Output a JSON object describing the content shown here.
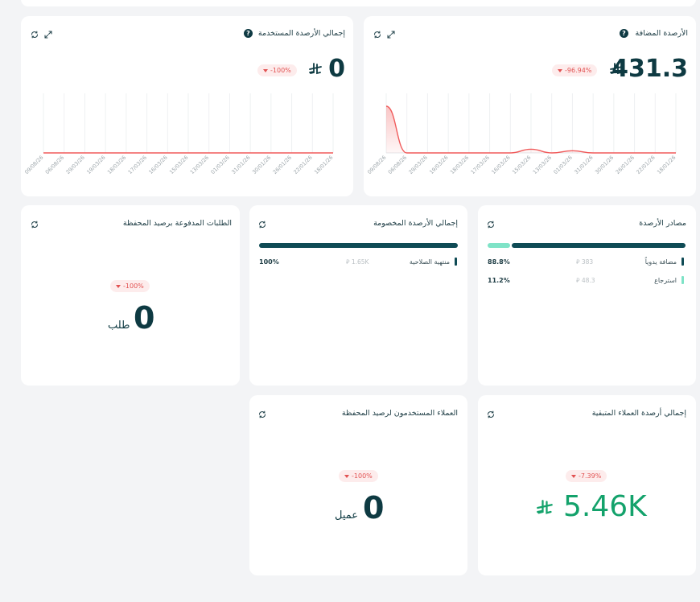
{
  "cards": {
    "added_balances": {
      "title": "الأرصدة المضافة",
      "value": "431.3",
      "badge": "-96.94%",
      "ticks": [
        "09/08/26",
        "06/08/26",
        "29/03/26",
        "19/03/26",
        "18/03/26",
        "17/03/26",
        "16/03/26",
        "15/03/26",
        "13/03/26",
        "01/03/26",
        "31/01/26",
        "30/01/26",
        "26/01/26",
        "22/01/26",
        "18/01/26"
      ]
    },
    "used_balances": {
      "title": "إجمالي الأرصدة المستخدمة",
      "value": "0",
      "badge": "-100%",
      "ticks": [
        "09/08/26",
        "06/08/26",
        "29/03/26",
        "19/03/26",
        "18/03/26",
        "17/03/26",
        "16/03/26",
        "15/03/26",
        "13/03/26",
        "01/03/26",
        "31/01/26",
        "30/01/26",
        "26/01/26",
        "22/01/26",
        "18/01/26"
      ]
    },
    "sources": {
      "title": "مصادر الأرصدة",
      "rows": [
        {
          "label": "مضافة يدوياً",
          "amount": "383",
          "percent": "88.8%",
          "color": "#0f4b55"
        },
        {
          "label": "استرجاع",
          "amount": "48.3",
          "percent": "11.2%",
          "color": "#7fe3c7"
        }
      ]
    },
    "deducted": {
      "title": "إجمالي الأرصدة المخصومة",
      "rows": [
        {
          "label": "منتهية الصلاحية",
          "amount": "1.65K",
          "percent": "100%",
          "color": "#0f4b55"
        }
      ]
    },
    "paid_orders": {
      "title": "الطلبات المدفوعة برصيد المحفظة",
      "value": "0",
      "unit": "طلب",
      "badge": "-100%"
    },
    "remaining": {
      "title": "إجمالي أرصدة العملاء المتبقية",
      "value": "5.46K",
      "badge": "-7.39%"
    },
    "customers": {
      "title": "العملاء المستخدمون لرصيد المحفظة",
      "value": "0",
      "unit": "عميل",
      "badge": "-100%"
    }
  },
  "help_mark": "?",
  "chart_data": [
    {
      "type": "area",
      "title": "الأرصدة المضافة",
      "categories": [
        "09/08/26",
        "06/08/26",
        "29/03/26",
        "19/03/26",
        "18/03/26",
        "17/03/26",
        "16/03/26",
        "15/03/26",
        "13/03/26",
        "01/03/26",
        "31/01/26",
        "30/01/26",
        "26/01/26",
        "22/01/26",
        "18/01/26"
      ],
      "values": [
        431.3,
        0,
        0,
        0,
        0,
        0,
        0,
        34,
        0,
        20,
        0,
        0,
        0,
        0,
        0
      ],
      "color": "#f05a5a"
    },
    {
      "type": "line",
      "title": "إجمالي الأرصدة المستخدمة",
      "categories": [
        "09/08/26",
        "06/08/26",
        "29/03/26",
        "19/03/26",
        "18/03/26",
        "17/03/26",
        "16/03/26",
        "15/03/26",
        "13/03/26",
        "01/03/26",
        "31/01/26",
        "30/01/26",
        "26/01/26",
        "22/01/26",
        "18/01/26"
      ],
      "values": [
        0,
        0,
        0,
        0,
        0,
        0,
        0,
        0,
        0,
        0,
        0,
        0,
        0,
        0,
        0
      ],
      "color": "#f05a5a"
    }
  ],
  "colors": {
    "primary": "#0f4b55",
    "accent_green": "#13a26b",
    "mint": "#7fe3c7",
    "negative": "#e25252"
  }
}
